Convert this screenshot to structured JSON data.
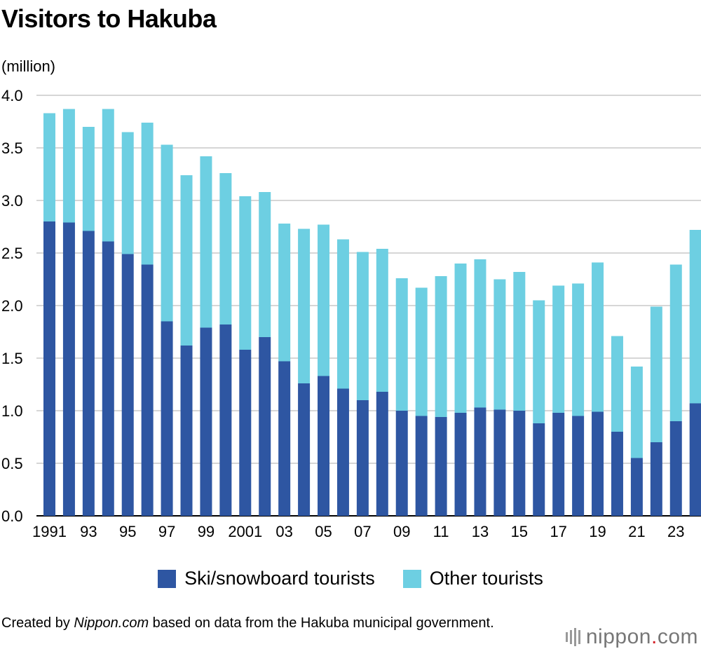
{
  "title": "Visitors to Hakuba",
  "unit": "(million)",
  "legend": [
    {
      "label": "Ski/snowboard tourists",
      "color": "#2e56a2"
    },
    {
      "label": "Other tourists",
      "color": "#6dcfe2"
    }
  ],
  "credit": {
    "prefix": "Created by ",
    "source_italic": "Nippon.com",
    "suffix": " based on data from the Hakuba municipal government."
  },
  "logo": {
    "name": "nippon",
    "dot": ".",
    "tld": "com"
  },
  "chart_data": {
    "type": "bar",
    "stacked": true,
    "title": "Visitors to Hakuba",
    "ylabel": "(million)",
    "ylim": [
      0,
      4.0
    ],
    "yticks": [
      "0.0",
      "0.5",
      "1.0",
      "1.5",
      "2.0",
      "2.5",
      "3.0",
      "3.5",
      "4.0"
    ],
    "grid": true,
    "legend_position": "bottom",
    "categories": [
      "1991",
      "1992",
      "1993",
      "1994",
      "1995",
      "1996",
      "1997",
      "1998",
      "1999",
      "2000",
      "2001",
      "2002",
      "2003",
      "2004",
      "2005",
      "2006",
      "2007",
      "2008",
      "2009",
      "2010",
      "2011",
      "2012",
      "2013",
      "2014",
      "2015",
      "2016",
      "2017",
      "2018",
      "2019",
      "2020",
      "2021",
      "2022",
      "2023",
      "2024"
    ],
    "tick_labels": [
      "1991",
      "",
      "93",
      "",
      "95",
      "",
      "97",
      "",
      "99",
      "",
      "2001",
      "",
      "03",
      "",
      "05",
      "",
      "07",
      "",
      "09",
      "",
      "11",
      "",
      "13",
      "",
      "15",
      "",
      "17",
      "",
      "19",
      "",
      "21",
      "",
      "23",
      ""
    ],
    "series": [
      {
        "name": "Ski/snowboard tourists",
        "color": "#2e56a2",
        "values": [
          2.8,
          2.79,
          2.71,
          2.61,
          2.49,
          2.39,
          1.85,
          1.62,
          1.79,
          1.82,
          1.58,
          1.7,
          1.47,
          1.26,
          1.33,
          1.21,
          1.1,
          1.18,
          1.0,
          0.95,
          0.94,
          0.98,
          1.03,
          1.01,
          1.0,
          0.88,
          0.98,
          0.95,
          0.99,
          0.8,
          0.55,
          0.7,
          0.9,
          1.07
        ]
      },
      {
        "name": "Other tourists",
        "color": "#6dcfe2",
        "values": [
          1.03,
          1.08,
          0.99,
          1.26,
          1.16,
          1.35,
          1.68,
          1.62,
          1.63,
          1.44,
          1.46,
          1.38,
          1.31,
          1.47,
          1.44,
          1.42,
          1.41,
          1.36,
          1.26,
          1.22,
          1.34,
          1.42,
          1.41,
          1.24,
          1.32,
          1.17,
          1.21,
          1.26,
          1.42,
          0.91,
          0.87,
          1.29,
          1.49,
          1.65
        ]
      }
    ]
  }
}
